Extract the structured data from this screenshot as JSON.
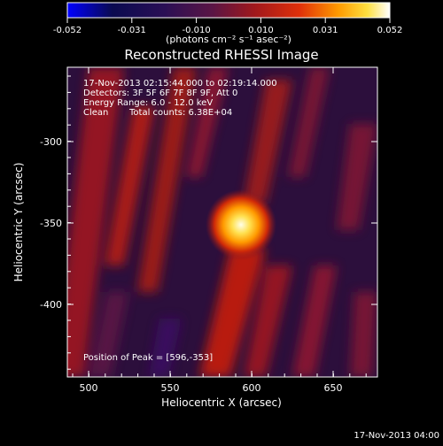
{
  "colorbar": {
    "ticks": [
      "-0.052",
      "-0.031",
      "-0.010",
      "0.010",
      "0.031",
      "0.052"
    ],
    "units": "(photons cm⁻² s⁻¹ asec⁻²)",
    "colors": [
      "#0000ff",
      "#0b0a2a",
      "#3a1160",
      "#7a1535",
      "#c01a10",
      "#ff6a00",
      "#ffd000",
      "#fffff0"
    ]
  },
  "title": "Reconstructed RHESSI Image",
  "info": {
    "time_range": "17-Nov-2013 02:15:44.000 to 02:19:14.000",
    "detectors": "Detectors: 3F 5F 6F 7F 8F 9F, Att 0",
    "energy": "Energy Range: 6.0 - 12.0 keV",
    "clean": "Clean",
    "total_counts": "Total counts: 6.38E+04",
    "peak": "Position of Peak = [596,-353]"
  },
  "axes": {
    "xlabel": "Heliocentric X (arcsec)",
    "ylabel": "Heliocentric Y (arcsec)",
    "x_ticks": [
      "500",
      "550",
      "600",
      "650"
    ],
    "y_ticks": [
      "-300",
      "-350",
      "-400"
    ]
  },
  "footer": "17-Nov-2013 04:00"
}
